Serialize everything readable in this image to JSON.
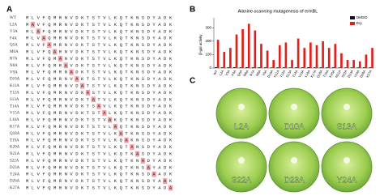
{
  "panels": {
    "a": "A",
    "b": "B",
    "c": "C"
  },
  "alignment": {
    "rows": [
      {
        "label": "WT",
        "sequence": "MLVFQMRNVDKTSTVLKQTKNSDYADK"
      },
      {
        "label": "L2A",
        "sequence": "MAVFQMRNVDKTSTVLKQTKNSDYADK"
      },
      {
        "label": "V3A",
        "sequence": "MLAFQMRNVDKTSTVLKQTKNSDYADK"
      },
      {
        "label": "F4A",
        "sequence": "MLVAQMRNVDKTSTVLKQTKNSDYADK"
      },
      {
        "label": "Q5A",
        "sequence": "MLVFAMRNVDKTSTVLKQTKNSDYADK"
      },
      {
        "label": "M6A",
        "sequence": "MLVFQARNVDKTSTVLKQTKNSDYADK"
      },
      {
        "label": "R7A",
        "sequence": "MLVFQMANVDKTSTVLKQTKNSDYADK"
      },
      {
        "label": "N8A",
        "sequence": "MLVFQMRAVDKTSTVLKQTKNSDYADK"
      },
      {
        "label": "V9A",
        "sequence": "MLVFQMRNADKTSTVLKQTKNSDYADK"
      },
      {
        "label": "D10A",
        "sequence": "MLVFQMRNVAKTSTVLKQTKNSDYADK"
      },
      {
        "label": "K11A",
        "sequence": "MLVFQMRNVDATSTVLKQTKNSDYADK"
      },
      {
        "label": "T12A",
        "sequence": "MLVFQMRNVDKASTVLKQTKNSDYADK"
      },
      {
        "label": "S13A",
        "sequence": "MLVFQMRNVDKTATVLKQTKNSDYADK"
      },
      {
        "label": "T14A",
        "sequence": "MLVFQMRNVDKTSAVLKQTKNSDYADK"
      },
      {
        "label": "V15A",
        "sequence": "MLVFQMRNVDKTSTALKQTKNSDYADK"
      },
      {
        "label": "L16A",
        "sequence": "MLVFQMRNVDKTSTVAKQTKNSDYADK"
      },
      {
        "label": "K17A",
        "sequence": "MLVFQMRNVDKTSTVLAQTKNSDYADK"
      },
      {
        "label": "Q18A",
        "sequence": "MLVFQMRNVDKTSTVLKATKNSDYADK"
      },
      {
        "label": "T19A",
        "sequence": "MLVFQMRNVDKTSTVLKQAKNSDYADK"
      },
      {
        "label": "K20A",
        "sequence": "MLVFQMRNVDKTSTVLKQTANSDYADK"
      },
      {
        "label": "N21A",
        "sequence": "MLVFQMRNVDKTSTVLKQTKASDYADK"
      },
      {
        "label": "S22A",
        "sequence": "MLVFQMRNVDKTSTVLKQTKNADYADK"
      },
      {
        "label": "D23A",
        "sequence": "MLVFQMRNVDKTSTVLKQTKNSAYADK"
      },
      {
        "label": "Y24A",
        "sequence": "MLVFQMRNVDKTSTVLKQTKNSDAADK"
      },
      {
        "label": "D26A",
        "sequence": "MLVFQMRNVDKTSTVLKQTKNSDYAAK"
      },
      {
        "label": "K27A",
        "sequence": "MLVFQMRNVDKTSTVLKQTKNSDYADA"
      }
    ]
  },
  "chart_data": {
    "type": "bar",
    "title": "Alanine-scanning mutagenesis of ermBL",
    "y_label": "β-gal activity",
    "categories": [
      "WT",
      "L2A",
      "V3A",
      "F4A",
      "Q5A",
      "M6A",
      "R7A",
      "N8A",
      "V9A",
      "D10A",
      "K11A",
      "T12A",
      "S13A",
      "T14A",
      "V15A",
      "L16A",
      "K17A",
      "Q18A",
      "T19A",
      "K20A",
      "N21A",
      "S22A",
      "D23A",
      "Y24A",
      "D26A",
      "K27A"
    ],
    "series": [
      {
        "name": "DMSO",
        "color": "#111111",
        "values": [
          6,
          5,
          5,
          6,
          5,
          6,
          5,
          5,
          5,
          4,
          5,
          5,
          4,
          5,
          5,
          6,
          5,
          5,
          5,
          5,
          4,
          4,
          4,
          4,
          5,
          5
        ]
      },
      {
        "name": "Ery",
        "color": "#e0201b",
        "values": [
          210,
          120,
          150,
          250,
          290,
          330,
          280,
          180,
          130,
          60,
          170,
          190,
          60,
          220,
          150,
          190,
          170,
          200,
          150,
          180,
          110,
          60,
          60,
          50,
          100,
          150
        ]
      }
    ],
    "ylim": [
      0,
      350
    ],
    "yticks": [
      0,
      100,
      200,
      300
    ],
    "legend": "top-right"
  },
  "plates": [
    {
      "label": "L2A"
    },
    {
      "label": "D10A"
    },
    {
      "label": "S13A"
    },
    {
      "label": "S22A"
    },
    {
      "label": "D23A"
    },
    {
      "label": "Y24A"
    }
  ]
}
